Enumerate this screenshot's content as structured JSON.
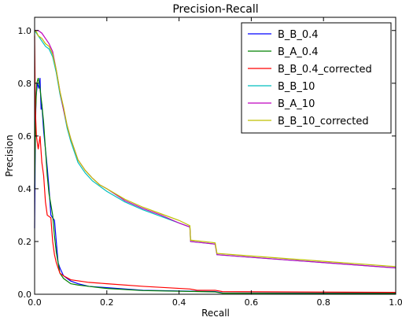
{
  "chart_data": {
    "type": "line",
    "title": "Precision-Recall",
    "xlabel": "Recall",
    "ylabel": "Precision",
    "xlim": [
      0.0,
      1.0
    ],
    "ylim": [
      0.0,
      1.05
    ],
    "x_ticks": [
      0.0,
      0.2,
      0.4,
      0.6,
      0.8,
      1.0
    ],
    "y_ticks": [
      0.0,
      0.2,
      0.4,
      0.6,
      0.8,
      1.0
    ],
    "x_tick_labels": [
      "0.0",
      "0.2",
      "0.4",
      "0.6",
      "0.8",
      "1.0"
    ],
    "y_tick_labels": [
      "0.0",
      "0.2",
      "0.4",
      "0.6",
      "0.8",
      "1.0"
    ],
    "grid": false,
    "legend_position": "top-right",
    "series": [
      {
        "name": "B_B_0.4",
        "color": "#0000ff",
        "points": [
          [
            0,
            0.25
          ],
          [
            0.002,
            0.6
          ],
          [
            0.004,
            0.75
          ],
          [
            0.008,
            0.8
          ],
          [
            0.012,
            0.78
          ],
          [
            0.015,
            0.82
          ],
          [
            0.018,
            0.7
          ],
          [
            0.02,
            0.72
          ],
          [
            0.025,
            0.62
          ],
          [
            0.03,
            0.55
          ],
          [
            0.035,
            0.48
          ],
          [
            0.04,
            0.4
          ],
          [
            0.045,
            0.3
          ],
          [
            0.05,
            0.29
          ],
          [
            0.055,
            0.28
          ],
          [
            0.06,
            0.2
          ],
          [
            0.065,
            0.12
          ],
          [
            0.07,
            0.1
          ],
          [
            0.08,
            0.07
          ],
          [
            0.09,
            0.06
          ],
          [
            0.1,
            0.05
          ],
          [
            0.12,
            0.04
          ],
          [
            0.15,
            0.03
          ],
          [
            0.2,
            0.025
          ],
          [
            0.3,
            0.015
          ],
          [
            0.5,
            0.01
          ],
          [
            0.52,
            0.005
          ],
          [
            1.0,
            0.004
          ]
        ]
      },
      {
        "name": "B_A_0.4",
        "color": "#008000",
        "points": [
          [
            0,
            0.4
          ],
          [
            0.003,
            0.7
          ],
          [
            0.006,
            0.8
          ],
          [
            0.01,
            0.82
          ],
          [
            0.015,
            0.78
          ],
          [
            0.02,
            0.72
          ],
          [
            0.025,
            0.65
          ],
          [
            0.03,
            0.55
          ],
          [
            0.035,
            0.45
          ],
          [
            0.04,
            0.38
          ],
          [
            0.05,
            0.3
          ],
          [
            0.055,
            0.22
          ],
          [
            0.06,
            0.16
          ],
          [
            0.065,
            0.12
          ],
          [
            0.07,
            0.08
          ],
          [
            0.08,
            0.06
          ],
          [
            0.1,
            0.04
          ],
          [
            0.12,
            0.035
          ],
          [
            0.15,
            0.03
          ],
          [
            0.2,
            0.022
          ],
          [
            0.3,
            0.014
          ],
          [
            0.5,
            0.009
          ],
          [
            0.52,
            0.004
          ],
          [
            1.0,
            0.003
          ]
        ]
      },
      {
        "name": "B_B_0.4_corrected",
        "color": "#ff0000",
        "points": [
          [
            0,
            0.98
          ],
          [
            0.002,
            0.7
          ],
          [
            0.005,
            0.6
          ],
          [
            0.01,
            0.55
          ],
          [
            0.015,
            0.6
          ],
          [
            0.02,
            0.5
          ],
          [
            0.025,
            0.45
          ],
          [
            0.03,
            0.35
          ],
          [
            0.035,
            0.3
          ],
          [
            0.045,
            0.29
          ],
          [
            0.05,
            0.2
          ],
          [
            0.055,
            0.15
          ],
          [
            0.06,
            0.12
          ],
          [
            0.065,
            0.1
          ],
          [
            0.07,
            0.08
          ],
          [
            0.08,
            0.07
          ],
          [
            0.1,
            0.055
          ],
          [
            0.15,
            0.045
          ],
          [
            0.2,
            0.04
          ],
          [
            0.3,
            0.03
          ],
          [
            0.43,
            0.02
          ],
          [
            0.45,
            0.015
          ],
          [
            0.5,
            0.015
          ],
          [
            0.52,
            0.01
          ],
          [
            1.0,
            0.007
          ]
        ]
      },
      {
        "name": "B_B_10",
        "color": "#00bfbf",
        "points": [
          [
            0,
            1.0
          ],
          [
            0.005,
            0.99
          ],
          [
            0.01,
            0.98
          ],
          [
            0.02,
            0.96
          ],
          [
            0.03,
            0.94
          ],
          [
            0.04,
            0.93
          ],
          [
            0.05,
            0.9
          ],
          [
            0.06,
            0.84
          ],
          [
            0.07,
            0.76
          ],
          [
            0.08,
            0.7
          ],
          [
            0.09,
            0.63
          ],
          [
            0.1,
            0.58
          ],
          [
            0.12,
            0.5
          ],
          [
            0.14,
            0.46
          ],
          [
            0.16,
            0.43
          ],
          [
            0.18,
            0.41
          ],
          [
            0.2,
            0.39
          ],
          [
            0.25,
            0.35
          ],
          [
            0.3,
            0.32
          ],
          [
            0.35,
            0.295
          ],
          [
            0.4,
            0.27
          ],
          [
            0.43,
            0.255
          ],
          [
            0.432,
            0.2
          ],
          [
            0.5,
            0.19
          ],
          [
            0.505,
            0.15
          ],
          [
            0.6,
            0.14
          ],
          [
            0.7,
            0.13
          ],
          [
            0.8,
            0.12
          ],
          [
            0.9,
            0.11
          ],
          [
            1.0,
            0.1
          ]
        ]
      },
      {
        "name": "B_A_10",
        "color": "#bf00bf",
        "points": [
          [
            0,
            1.0
          ],
          [
            0.01,
            1.0
          ],
          [
            0.02,
            0.99
          ],
          [
            0.03,
            0.97
          ],
          [
            0.04,
            0.95
          ],
          [
            0.05,
            0.92
          ],
          [
            0.06,
            0.85
          ],
          [
            0.07,
            0.77
          ],
          [
            0.08,
            0.7
          ],
          [
            0.09,
            0.64
          ],
          [
            0.1,
            0.59
          ],
          [
            0.12,
            0.51
          ],
          [
            0.14,
            0.47
          ],
          [
            0.16,
            0.44
          ],
          [
            0.18,
            0.415
          ],
          [
            0.2,
            0.4
          ],
          [
            0.25,
            0.355
          ],
          [
            0.3,
            0.325
          ],
          [
            0.35,
            0.3
          ],
          [
            0.4,
            0.27
          ],
          [
            0.43,
            0.255
          ],
          [
            0.432,
            0.2
          ],
          [
            0.5,
            0.19
          ],
          [
            0.505,
            0.15
          ],
          [
            0.6,
            0.14
          ],
          [
            0.7,
            0.13
          ],
          [
            0.8,
            0.12
          ],
          [
            0.9,
            0.11
          ],
          [
            1.0,
            0.1
          ]
        ]
      },
      {
        "name": "B_B_10_corrected",
        "color": "#bfbf00",
        "points": [
          [
            0,
            1.0
          ],
          [
            0.005,
            0.995
          ],
          [
            0.01,
            0.98
          ],
          [
            0.02,
            0.97
          ],
          [
            0.03,
            0.95
          ],
          [
            0.04,
            0.94
          ],
          [
            0.05,
            0.91
          ],
          [
            0.06,
            0.85
          ],
          [
            0.07,
            0.77
          ],
          [
            0.08,
            0.71
          ],
          [
            0.09,
            0.64
          ],
          [
            0.1,
            0.59
          ],
          [
            0.12,
            0.51
          ],
          [
            0.14,
            0.47
          ],
          [
            0.16,
            0.44
          ],
          [
            0.18,
            0.415
          ],
          [
            0.2,
            0.4
          ],
          [
            0.25,
            0.36
          ],
          [
            0.3,
            0.33
          ],
          [
            0.35,
            0.305
          ],
          [
            0.4,
            0.28
          ],
          [
            0.43,
            0.26
          ],
          [
            0.432,
            0.205
          ],
          [
            0.5,
            0.195
          ],
          [
            0.505,
            0.155
          ],
          [
            0.6,
            0.145
          ],
          [
            0.7,
            0.135
          ],
          [
            0.8,
            0.125
          ],
          [
            0.9,
            0.115
          ],
          [
            1.0,
            0.105
          ]
        ]
      }
    ]
  }
}
